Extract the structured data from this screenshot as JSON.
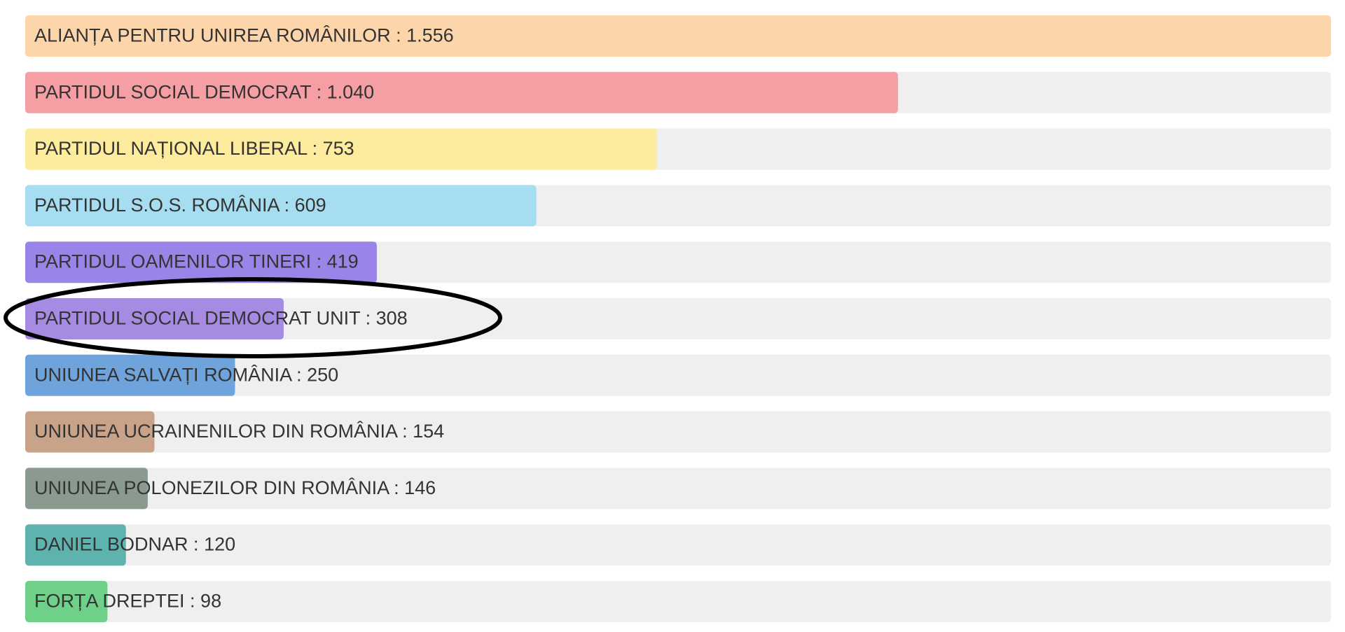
{
  "chart_data": {
    "type": "bar",
    "orientation": "horizontal",
    "label_separator": " : ",
    "categories": [
      "ALIANȚA PENTRU UNIREA ROMÂNILOR",
      "PARTIDUL SOCIAL DEMOCRAT",
      "PARTIDUL NAȚIONAL LIBERAL",
      "PARTIDUL S.O.S. ROMÂNIA",
      "PARTIDUL OAMENILOR TINERI",
      "PARTIDUL SOCIAL DEMOCRAT UNIT",
      "UNIUNEA SALVAȚI ROMÂNIA",
      "UNIUNEA UCRAINENILOR DIN ROMÂNIA",
      "UNIUNEA POLONEZILOR DIN ROMÂNIA",
      "DANIEL BODNAR",
      "FORȚA DREPTEI"
    ],
    "values": [
      1556,
      1040,
      753,
      609,
      419,
      308,
      250,
      154,
      146,
      120,
      98
    ],
    "value_labels": [
      "1.556",
      "1.040",
      "753",
      "609",
      "419",
      "308",
      "250",
      "154",
      "146",
      "120",
      "98"
    ],
    "colors": [
      "#fdd5ab",
      "#f59ea3",
      "#fdeb9e",
      "#a6ddf0",
      "#9b84e8",
      "#a78be2",
      "#6fa3dc",
      "#c8a38a",
      "#8a9a8f",
      "#5fb3ae",
      "#6fd08a"
    ],
    "track_color": "#efefef"
  }
}
